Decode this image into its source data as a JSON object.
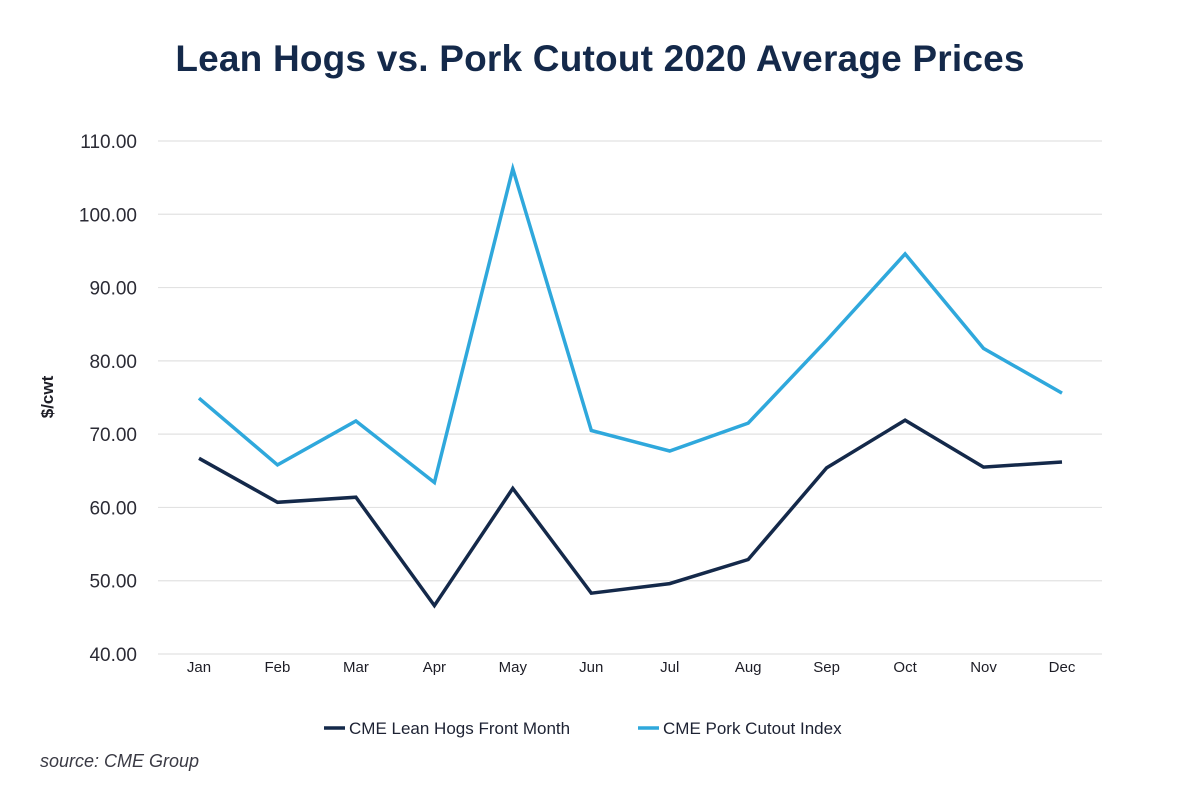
{
  "chart_data": {
    "type": "line",
    "title": "Lean Hogs vs. Pork Cutout 2020 Average Prices",
    "xlabel": "",
    "ylabel": "$/cwt",
    "categories": [
      "Jan",
      "Feb",
      "Mar",
      "Apr",
      "May",
      "Jun",
      "Jul",
      "Aug",
      "Sep",
      "Oct",
      "Nov",
      "Dec"
    ],
    "ylim": [
      40,
      110
    ],
    "yticks": [
      40,
      50,
      60,
      70,
      80,
      90,
      100,
      110
    ],
    "ytick_labels": [
      "40.00",
      "50.00",
      "60.00",
      "70.00",
      "80.00",
      "90.00",
      "100.00",
      "110.00"
    ],
    "grid": true,
    "legend_position": "bottom",
    "series": [
      {
        "name": "CME Lean Hogs Front Month",
        "color": "#14294a",
        "values": [
          66.7,
          60.7,
          61.4,
          46.6,
          62.6,
          48.3,
          49.6,
          52.9,
          65.4,
          71.9,
          65.5,
          66.2
        ]
      },
      {
        "name": "CME Pork Cutout Index",
        "color": "#2fa8dc",
        "values": [
          74.9,
          65.8,
          71.8,
          63.4,
          106.2,
          70.5,
          67.7,
          71.5,
          82.8,
          94.6,
          81.7,
          75.6
        ]
      }
    ],
    "source": "source: CME Group"
  }
}
